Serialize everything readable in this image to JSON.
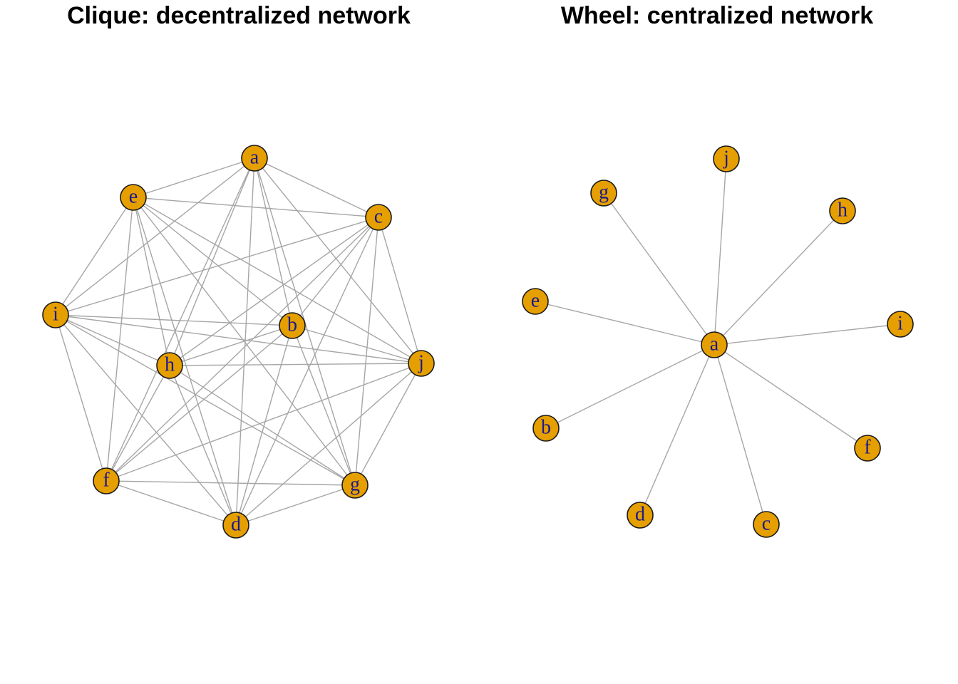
{
  "style": {
    "node_fill": "#e69f00",
    "node_border": "#1a1a1a",
    "label_color": "#1a1a8c",
    "edge_color": "#a6a6a6"
  },
  "panels": [
    {
      "key": "clique",
      "title": "Clique: decentralized network",
      "nodes": [
        "a",
        "b",
        "c",
        "d",
        "e",
        "f",
        "g",
        "h",
        "i",
        "j"
      ],
      "edges": [
        [
          "a",
          "b"
        ],
        [
          "a",
          "c"
        ],
        [
          "a",
          "d"
        ],
        [
          "a",
          "e"
        ],
        [
          "a",
          "f"
        ],
        [
          "a",
          "g"
        ],
        [
          "a",
          "h"
        ],
        [
          "a",
          "i"
        ],
        [
          "a",
          "j"
        ],
        [
          "b",
          "c"
        ],
        [
          "b",
          "d"
        ],
        [
          "b",
          "e"
        ],
        [
          "b",
          "f"
        ],
        [
          "b",
          "g"
        ],
        [
          "b",
          "h"
        ],
        [
          "b",
          "i"
        ],
        [
          "b",
          "j"
        ],
        [
          "c",
          "d"
        ],
        [
          "c",
          "e"
        ],
        [
          "c",
          "f"
        ],
        [
          "c",
          "g"
        ],
        [
          "c",
          "h"
        ],
        [
          "c",
          "i"
        ],
        [
          "c",
          "j"
        ],
        [
          "d",
          "e"
        ],
        [
          "d",
          "f"
        ],
        [
          "d",
          "g"
        ],
        [
          "d",
          "h"
        ],
        [
          "d",
          "i"
        ],
        [
          "d",
          "j"
        ],
        [
          "e",
          "f"
        ],
        [
          "e",
          "g"
        ],
        [
          "e",
          "h"
        ],
        [
          "e",
          "i"
        ],
        [
          "e",
          "j"
        ],
        [
          "f",
          "g"
        ],
        [
          "f",
          "h"
        ],
        [
          "f",
          "i"
        ],
        [
          "f",
          "j"
        ],
        [
          "g",
          "h"
        ],
        [
          "g",
          "i"
        ],
        [
          "g",
          "j"
        ],
        [
          "h",
          "i"
        ],
        [
          "h",
          "j"
        ],
        [
          "i",
          "j"
        ]
      ]
    },
    {
      "key": "wheel",
      "title": "Wheel: centralized network",
      "nodes": [
        "a",
        "b",
        "c",
        "d",
        "e",
        "f",
        "g",
        "h",
        "i",
        "j"
      ],
      "edges": [
        [
          "a",
          "b"
        ],
        [
          "a",
          "c"
        ],
        [
          "a",
          "d"
        ],
        [
          "a",
          "e"
        ],
        [
          "a",
          "f"
        ],
        [
          "a",
          "g"
        ],
        [
          "a",
          "h"
        ],
        [
          "a",
          "i"
        ],
        [
          "a",
          "j"
        ]
      ]
    }
  ]
}
